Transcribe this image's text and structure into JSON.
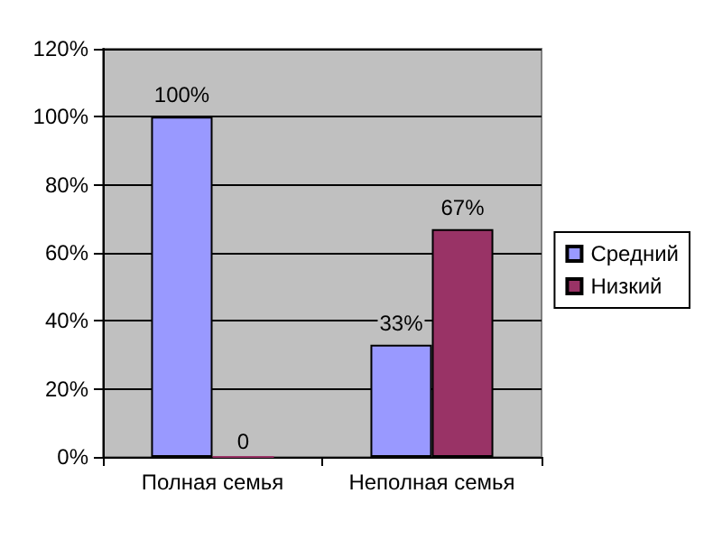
{
  "chart_data": {
    "type": "bar",
    "categories": [
      "Полная семья",
      "Неполная семья"
    ],
    "series": [
      {
        "name": "Средний",
        "color": "#9999ff",
        "values": [
          100,
          33
        ],
        "value_labels": [
          "100%",
          "33%"
        ]
      },
      {
        "name": "Низкий",
        "color": "#993366",
        "values": [
          0,
          67
        ],
        "value_labels": [
          "0",
          "67%"
        ]
      }
    ],
    "ylim": [
      0,
      120
    ],
    "yticks": [
      {
        "value": 0,
        "label": "0%"
      },
      {
        "value": 20,
        "label": "20%"
      },
      {
        "value": 40,
        "label": "40%"
      },
      {
        "value": 60,
        "label": "60%"
      },
      {
        "value": 80,
        "label": "80%"
      },
      {
        "value": 100,
        "label": "100%"
      },
      {
        "value": 120,
        "label": "120%"
      }
    ],
    "grid": "y",
    "legend": "right"
  }
}
